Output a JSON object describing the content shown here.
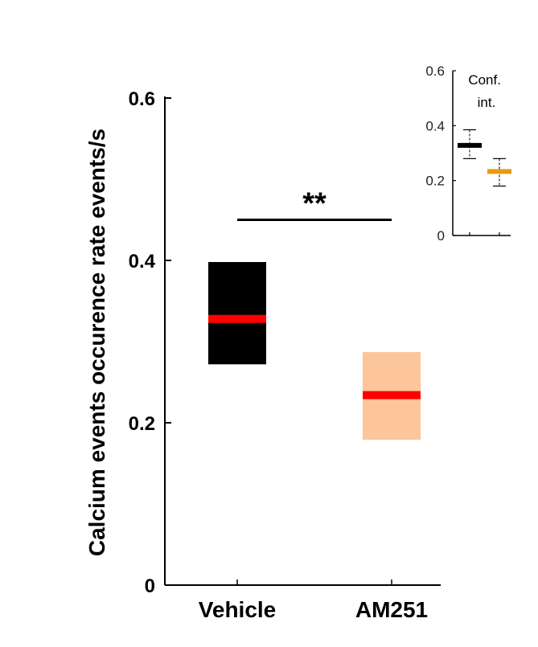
{
  "chart_data": [
    {
      "type": "box",
      "panel": "main",
      "ylabel": "Calcium events occurence rate events/s",
      "xlabel": "",
      "title": "",
      "categories": [
        "Vehicle",
        "AM251"
      ],
      "ylim": [
        0,
        0.6
      ],
      "yticks": [
        0,
        0.2,
        0.4,
        0.6
      ],
      "ytick_labels": [
        "0",
        "0.2",
        "0.4",
        "0.6"
      ],
      "boxes": [
        {
          "category": "Vehicle",
          "lower": 0.272,
          "upper": 0.398,
          "median": 0.328,
          "box_color": "#000000",
          "median_color": "#ff0000"
        },
        {
          "category": "AM251",
          "lower": 0.179,
          "upper": 0.287,
          "median": 0.234,
          "box_color": "#fcc59a",
          "median_color": "#ff0000"
        }
      ],
      "significance": {
        "label": "**",
        "between": [
          "Vehicle",
          "AM251"
        ],
        "y": 0.45
      }
    },
    {
      "type": "errorbar",
      "panel": "inset",
      "title": "Conf.\nint.",
      "title_lines": [
        "Conf.",
        "int."
      ],
      "ylim": [
        0,
        0.6
      ],
      "yticks": [
        0,
        0.2,
        0.4,
        0.6
      ],
      "ytick_labels": [
        "0",
        "0.2",
        "0.4",
        "0.6"
      ],
      "points": [
        {
          "center": 0.328,
          "low": 0.28,
          "high": 0.385,
          "color": "#000000"
        },
        {
          "center": 0.233,
          "low": 0.18,
          "high": 0.28,
          "color": "#e89a12"
        }
      ]
    }
  ]
}
